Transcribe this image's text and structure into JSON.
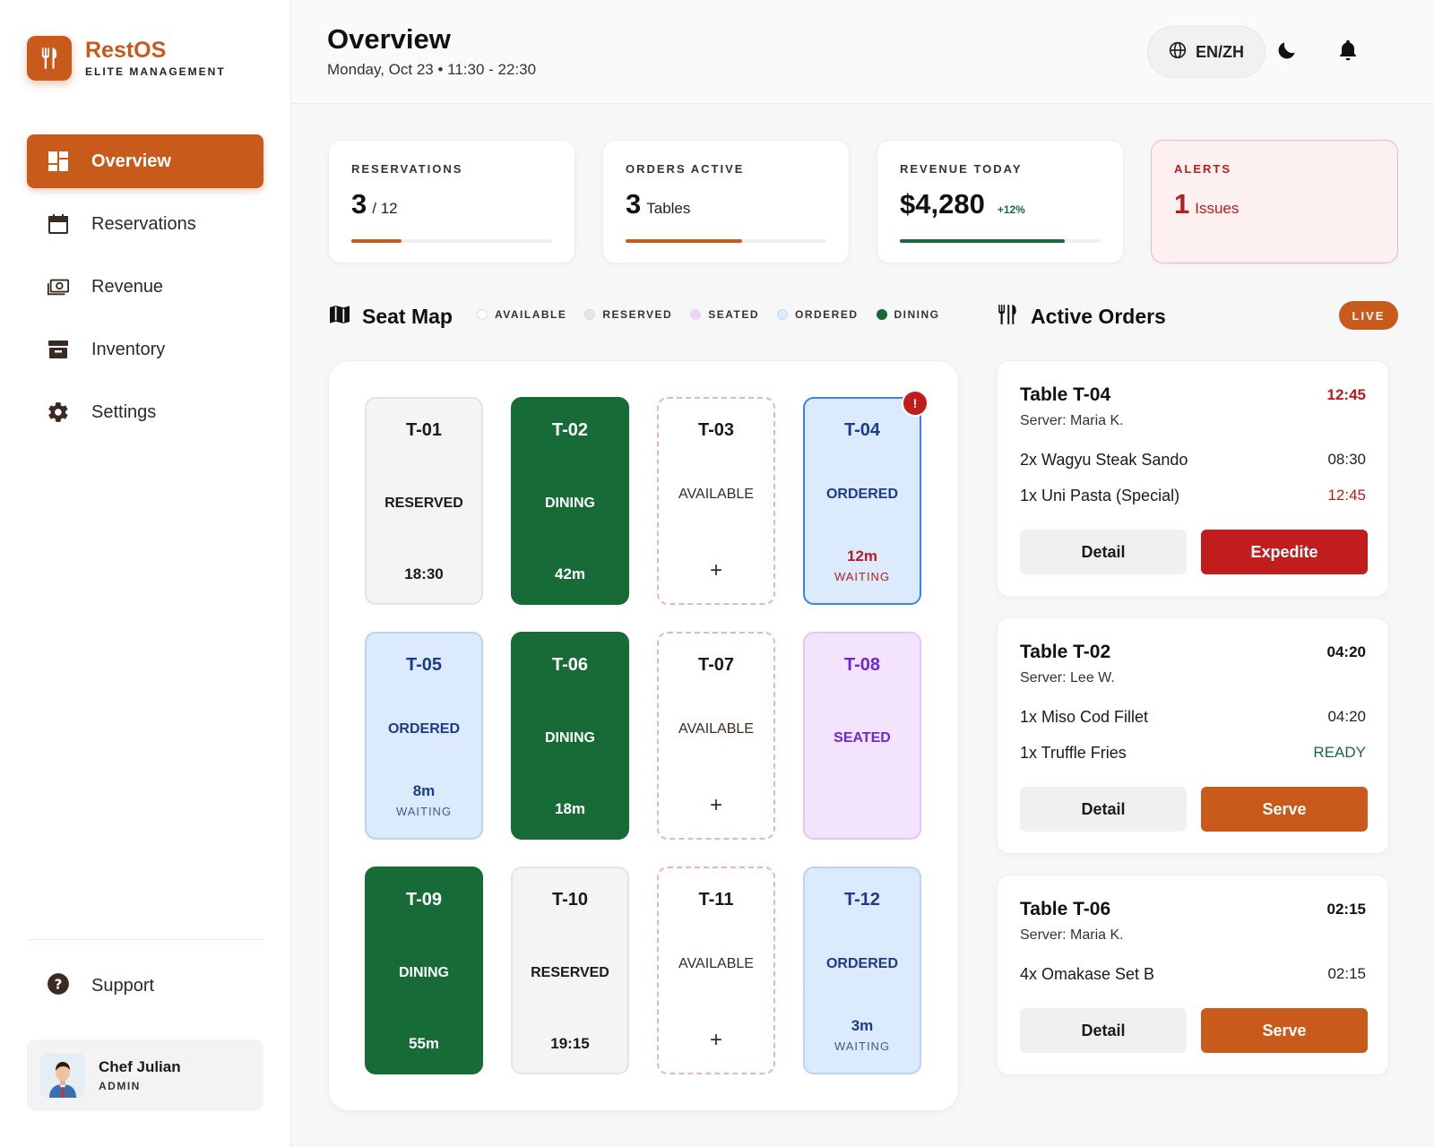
{
  "brand": {
    "name": "RestOS",
    "subtitle": "ELITE MANAGEMENT"
  },
  "nav": [
    {
      "label": "Overview",
      "icon": "dashboard-icon",
      "active": true
    },
    {
      "label": "Reservations",
      "icon": "calendar-icon"
    },
    {
      "label": "Revenue",
      "icon": "cash-icon"
    },
    {
      "label": "Inventory",
      "icon": "archive-box-icon"
    },
    {
      "label": "Settings",
      "icon": "gear-icon"
    }
  ],
  "support": {
    "label": "Support",
    "icon": "help-icon"
  },
  "user": {
    "name": "Chef Julian",
    "role": "ADMIN"
  },
  "header": {
    "title": "Overview",
    "subtitle": "Monday, Oct 23 • 11:30 - 22:30",
    "lang": "EN/ZH"
  },
  "stats": {
    "reservations": {
      "label": "RESERVATIONS",
      "value": "3",
      "suffix": "/ 12",
      "progress": 0.25,
      "color": "#c85a1c"
    },
    "orders": {
      "label": "ORDERS ACTIVE",
      "value": "3",
      "suffix": "Tables",
      "progress": 0.58,
      "color": "#c85a1c"
    },
    "revenue": {
      "label": "REVENUE TODAY",
      "value": "$4,280",
      "delta": "+12%",
      "progress": 0.82,
      "color": "#176b37"
    },
    "alerts": {
      "label": "ALERTS",
      "value": "1",
      "suffix": "Issues"
    }
  },
  "seat_map": {
    "title": "Seat Map",
    "legend": [
      {
        "label": "AVAILABLE",
        "color": "#ffffff"
      },
      {
        "label": "RESERVED",
        "color": "#e5e7eb"
      },
      {
        "label": "SEATED",
        "color": "#e9d5ff"
      },
      {
        "label": "ORDERED",
        "color": "#dbeafe"
      },
      {
        "label": "DINING",
        "color": "#176b37"
      }
    ],
    "tables": [
      {
        "id": "T-01",
        "status": "RESERVED",
        "time": "18:30"
      },
      {
        "id": "T-02",
        "status": "DINING",
        "time": "42m"
      },
      {
        "id": "T-03",
        "status": "AVAILABLE",
        "plus": "+"
      },
      {
        "id": "T-04",
        "status": "ORDERED",
        "wait_time": "12m",
        "wait_label": "WAITING",
        "alert": "!"
      },
      {
        "id": "T-05",
        "status": "ORDERED",
        "wait_time": "8m",
        "wait_label": "WAITING"
      },
      {
        "id": "T-06",
        "status": "DINING",
        "time": "18m"
      },
      {
        "id": "T-07",
        "status": "AVAILABLE",
        "plus": "+"
      },
      {
        "id": "T-08",
        "status": "SEATED"
      },
      {
        "id": "T-09",
        "status": "DINING",
        "time": "55m"
      },
      {
        "id": "T-10",
        "status": "RESERVED",
        "time": "19:15"
      },
      {
        "id": "T-11",
        "status": "AVAILABLE",
        "plus": "+"
      },
      {
        "id": "T-12",
        "status": "ORDERED",
        "wait_time": "3m",
        "wait_label": "WAITING"
      }
    ]
  },
  "orders": {
    "title": "Active Orders",
    "live": "LIVE",
    "list": [
      {
        "table": "Table T-04",
        "server": "Server: Maria K.",
        "time": "12:45",
        "items": [
          {
            "name": "2x Wagyu Steak Sando",
            "value": "08:30"
          },
          {
            "name": "1x Uni Pasta (Special)",
            "value": "12:45"
          }
        ],
        "detail": "Detail",
        "action": "Expedite"
      },
      {
        "table": "Table T-02",
        "server": "Server: Lee W.",
        "time": "04:20",
        "items": [
          {
            "name": "1x Miso Cod Fillet",
            "value": "04:20"
          },
          {
            "name": "1x Truffle Fries",
            "value": "READY"
          }
        ],
        "detail": "Detail",
        "action": "Serve"
      },
      {
        "table": "Table T-06",
        "server": "Server: Maria K.",
        "time": "02:15",
        "items": [
          {
            "name": "4x Omakase Set B",
            "value": "02:15"
          }
        ],
        "detail": "Detail",
        "action": "Serve"
      }
    ]
  }
}
